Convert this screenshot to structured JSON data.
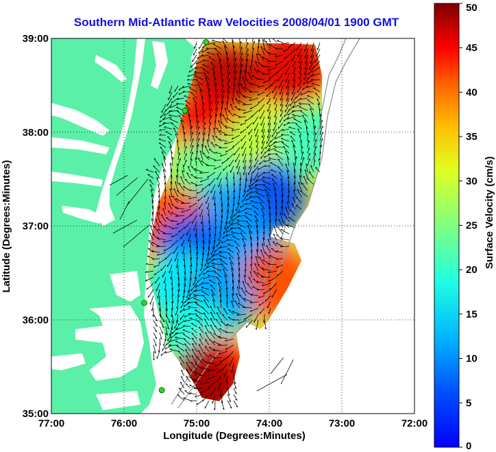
{
  "title": "Southern Mid-Atlantic Raw Velocities 2008/04/01 1900 GMT",
  "x_axis": {
    "label": "Longitude (Degrees:Minutes)",
    "ticks": [
      {
        "value": -77,
        "label": "77:00"
      },
      {
        "value": -76,
        "label": "76:00"
      },
      {
        "value": -75,
        "label": "75:00"
      },
      {
        "value": -74,
        "label": "74:00"
      },
      {
        "value": -73,
        "label": "73:00"
      },
      {
        "value": -72,
        "label": "72:00"
      }
    ],
    "range": [
      -77,
      -72
    ]
  },
  "y_axis": {
    "label": "Latitude (Degrees:Minutes)",
    "ticks": [
      {
        "value": 35,
        "label": "35:00"
      },
      {
        "value": 36,
        "label": "36:00"
      },
      {
        "value": 37,
        "label": "37:00"
      },
      {
        "value": 38,
        "label": "38:00"
      },
      {
        "value": 39,
        "label": "39:00"
      }
    ],
    "range": [
      35,
      39
    ]
  },
  "grid": "dotted",
  "colorbar": {
    "label": "Surface Velocity (cm/s)",
    "min": 0,
    "max": 50,
    "colormap": "jet",
    "ticks": [
      {
        "value": 0,
        "label": "0"
      },
      {
        "value": 5,
        "label": "5"
      },
      {
        "value": 10,
        "label": "10"
      },
      {
        "value": 15,
        "label": "15"
      },
      {
        "value": 20,
        "label": "20"
      },
      {
        "value": 25,
        "label": "25"
      },
      {
        "value": 30,
        "label": "30"
      },
      {
        "value": 35,
        "label": "35"
      },
      {
        "value": 40,
        "label": "40"
      },
      {
        "value": 45,
        "label": "45"
      },
      {
        "value": 50,
        "label": "50"
      }
    ]
  },
  "colors": {
    "land": "#5af0a8",
    "water": "#ffffff",
    "title": "#1010e0",
    "station": "#22dd22",
    "bathymetry": "#999999"
  },
  "stations": [
    {
      "lon": -74.87,
      "lat": 38.96
    },
    {
      "lon": -75.16,
      "lat": 38.23
    },
    {
      "lon": -75.72,
      "lat": 36.18
    },
    {
      "lon": -75.48,
      "lat": 35.25
    }
  ],
  "speed_regions": [
    {
      "lon": -74.6,
      "lat": 38.55,
      "speed": 47
    },
    {
      "lon": -73.7,
      "lat": 38.7,
      "speed": 45
    },
    {
      "lon": -74.8,
      "lat": 38.05,
      "speed": 44
    },
    {
      "lon": -74.2,
      "lat": 37.85,
      "speed": 28
    },
    {
      "lon": -73.4,
      "lat": 37.9,
      "speed": 22
    },
    {
      "lon": -74.9,
      "lat": 37.55,
      "speed": 24
    },
    {
      "lon": -74.0,
      "lat": 37.3,
      "speed": 10
    },
    {
      "lon": -74.6,
      "lat": 37.1,
      "speed": 14
    },
    {
      "lon": -75.35,
      "lat": 37.05,
      "speed": 40
    },
    {
      "lon": -75.05,
      "lat": 36.75,
      "speed": 11
    },
    {
      "lon": -74.3,
      "lat": 36.7,
      "speed": 14
    },
    {
      "lon": -73.9,
      "lat": 36.4,
      "speed": 40
    },
    {
      "lon": -75.2,
      "lat": 36.35,
      "speed": 18
    },
    {
      "lon": -74.7,
      "lat": 36.2,
      "speed": 14
    },
    {
      "lon": -75.0,
      "lat": 35.85,
      "speed": 20
    },
    {
      "lon": -74.7,
      "lat": 35.45,
      "speed": 42
    },
    {
      "lon": -74.9,
      "lat": 35.3,
      "speed": 48
    }
  ]
}
